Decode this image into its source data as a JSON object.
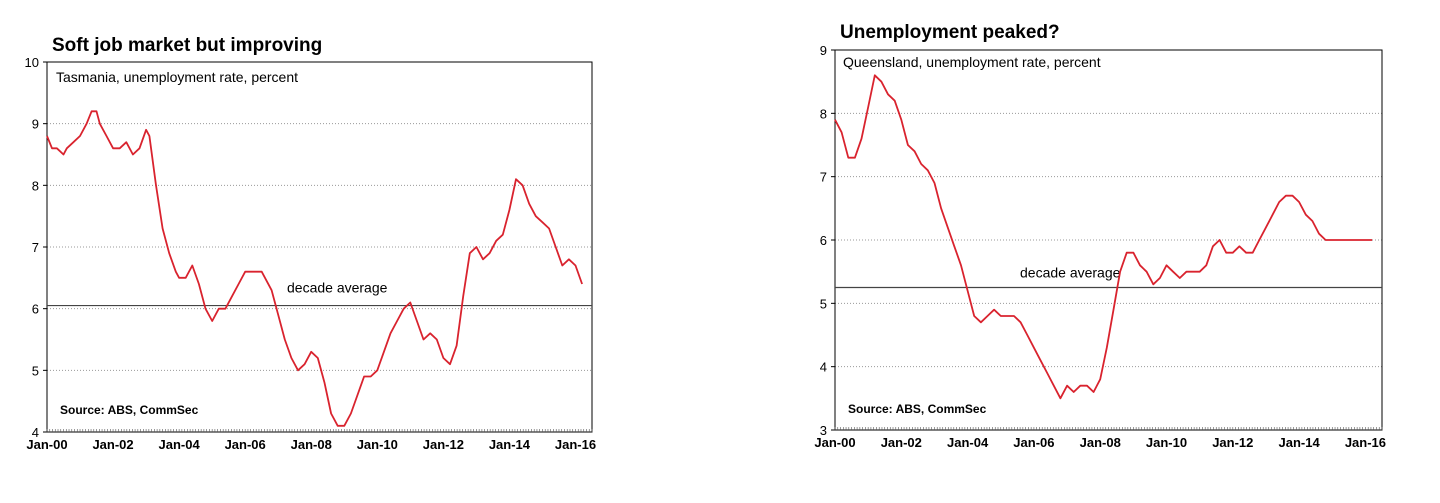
{
  "chart_data": [
    {
      "type": "line",
      "title": "Soft job market but improving",
      "subtitle": "Tasmania, unemployment rate, percent",
      "source": "Source: ABS, CommSec",
      "annotation": "decade average",
      "reference_line": 6.05,
      "ylim": [
        4,
        10
      ],
      "yticks": [
        "4",
        "5",
        "6",
        "7",
        "8",
        "9",
        "10"
      ],
      "xlim": [
        0,
        16.5
      ],
      "xticks": [
        {
          "label": "Jan-00",
          "x": 0
        },
        {
          "label": "Jan-02",
          "x": 2
        },
        {
          "label": "Jan-04",
          "x": 4
        },
        {
          "label": "Jan-06",
          "x": 6
        },
        {
          "label": "Jan-08",
          "x": 8
        },
        {
          "label": "Jan-10",
          "x": 10
        },
        {
          "label": "Jan-12",
          "x": 12
        },
        {
          "label": "Jan-14",
          "x": 14
        },
        {
          "label": "Jan-16",
          "x": 16
        }
      ],
      "grid": true,
      "line_color": "#d9232e",
      "series": [
        {
          "x": [
            0,
            0.15,
            0.3,
            0.5,
            0.6,
            0.8,
            1.0,
            1.2,
            1.35,
            1.5,
            1.6,
            1.8,
            2.0,
            2.2,
            2.4,
            2.6,
            2.8,
            3.0,
            3.1,
            3.3,
            3.5,
            3.7,
            3.9,
            4.0,
            4.2,
            4.4,
            4.6,
            4.8,
            5.0,
            5.2,
            5.4,
            5.6,
            5.8,
            6.0,
            6.2,
            6.5,
            6.8,
            6.9,
            7.0,
            7.2,
            7.4,
            7.6,
            7.8,
            8.0,
            8.2,
            8.4,
            8.6,
            8.8,
            9.0,
            9.2,
            9.4,
            9.6,
            9.8,
            10.0,
            10.2,
            10.4,
            10.6,
            10.8,
            11.0,
            11.2,
            11.4,
            11.6,
            11.8,
            12.0,
            12.2,
            12.4,
            12.6,
            12.8,
            13.0,
            13.2,
            13.4,
            13.6,
            13.8,
            14.0,
            14.2,
            14.4,
            14.6,
            14.8,
            15.0,
            15.2,
            15.4,
            15.6,
            15.8,
            16.0,
            16.2
          ],
          "y": [
            8.8,
            8.6,
            8.6,
            8.5,
            8.6,
            8.7,
            8.8,
            9.0,
            9.2,
            9.2,
            9.0,
            8.8,
            8.6,
            8.6,
            8.7,
            8.5,
            8.6,
            8.9,
            8.8,
            8.0,
            7.3,
            6.9,
            6.6,
            6.5,
            6.5,
            6.7,
            6.4,
            6.0,
            5.8,
            6.0,
            6.0,
            6.2,
            6.4,
            6.6,
            6.6,
            6.6,
            6.3,
            6.1,
            5.9,
            5.5,
            5.2,
            5.0,
            5.1,
            5.3,
            5.2,
            4.8,
            4.3,
            4.1,
            4.1,
            4.3,
            4.6,
            4.9,
            4.9,
            5.0,
            5.3,
            5.6,
            5.8,
            6.0,
            6.1,
            5.8,
            5.5,
            5.6,
            5.5,
            5.2,
            5.1,
            5.4,
            6.2,
            6.9,
            7.0,
            6.8,
            6.9,
            7.1,
            7.2,
            7.6,
            8.1,
            8.0,
            7.7,
            7.5,
            7.4,
            7.3,
            7.0,
            6.7,
            6.8,
            6.7,
            6.4
          ]
        }
      ]
    },
    {
      "type": "line",
      "title": "Unemployment peaked?",
      "subtitle": "Queensland, unemployment rate, percent",
      "source": "Source: ABS, CommSec",
      "annotation": "decade average",
      "reference_line": 5.25,
      "ylim": [
        3,
        9
      ],
      "yticks": [
        "3",
        "4",
        "5",
        "6",
        "7",
        "8",
        "9"
      ],
      "xlim": [
        0,
        16.5
      ],
      "xticks": [
        {
          "label": "Jan-00",
          "x": 0
        },
        {
          "label": "Jan-02",
          "x": 2
        },
        {
          "label": "Jan-04",
          "x": 4
        },
        {
          "label": "Jan-06",
          "x": 6
        },
        {
          "label": "Jan-08",
          "x": 8
        },
        {
          "label": "Jan-10",
          "x": 10
        },
        {
          "label": "Jan-12",
          "x": 12
        },
        {
          "label": "Jan-14",
          "x": 14
        },
        {
          "label": "Jan-16",
          "x": 16
        }
      ],
      "grid": true,
      "line_color": "#d9232e",
      "series": [
        {
          "x": [
            0,
            0.2,
            0.4,
            0.6,
            0.8,
            1.0,
            1.2,
            1.4,
            1.6,
            1.8,
            2.0,
            2.2,
            2.4,
            2.6,
            2.8,
            3.0,
            3.2,
            3.4,
            3.6,
            3.8,
            4.0,
            4.2,
            4.4,
            4.6,
            4.8,
            5.0,
            5.2,
            5.4,
            5.6,
            5.8,
            6.0,
            6.2,
            6.4,
            6.6,
            6.8,
            7.0,
            7.2,
            7.4,
            7.6,
            7.8,
            8.0,
            8.2,
            8.4,
            8.6,
            8.8,
            9.0,
            9.2,
            9.4,
            9.6,
            9.8,
            10.0,
            10.2,
            10.4,
            10.6,
            10.8,
            11.0,
            11.2,
            11.4,
            11.6,
            11.8,
            12.0,
            12.2,
            12.4,
            12.6,
            12.8,
            13.0,
            13.2,
            13.4,
            13.6,
            13.8,
            14.0,
            14.2,
            14.4,
            14.6,
            14.8,
            15.0,
            15.2,
            15.4,
            15.6,
            15.8,
            16.0,
            16.2
          ],
          "y": [
            7.9,
            7.7,
            7.3,
            7.3,
            7.6,
            8.1,
            8.6,
            8.5,
            8.3,
            8.2,
            7.9,
            7.5,
            7.4,
            7.2,
            7.1,
            6.9,
            6.5,
            6.2,
            5.9,
            5.6,
            5.2,
            4.8,
            4.7,
            4.8,
            4.9,
            4.8,
            4.8,
            4.8,
            4.7,
            4.5,
            4.3,
            4.1,
            3.9,
            3.7,
            3.5,
            3.7,
            3.6,
            3.7,
            3.7,
            3.6,
            3.8,
            4.3,
            4.9,
            5.5,
            5.8,
            5.8,
            5.6,
            5.5,
            5.3,
            5.4,
            5.6,
            5.5,
            5.4,
            5.5,
            5.5,
            5.5,
            5.6,
            5.9,
            6.0,
            5.8,
            5.8,
            5.9,
            5.8,
            5.8,
            6.0,
            6.2,
            6.4,
            6.6,
            6.7,
            6.7,
            6.6,
            6.4,
            6.3,
            6.1,
            6.0,
            6.0,
            6.0,
            6.0,
            6.0,
            6.0,
            6.0,
            6.0
          ]
        }
      ]
    }
  ]
}
